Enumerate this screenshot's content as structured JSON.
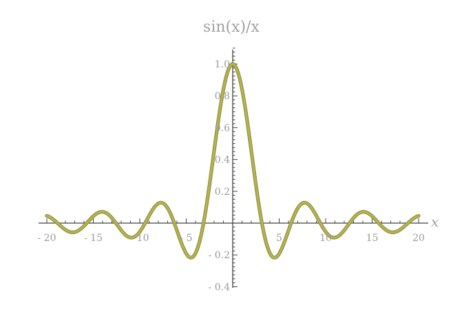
{
  "chart_data": {
    "type": "line",
    "title": "sin(x)/x",
    "xlabel": "x",
    "ylabel": "",
    "function": "sin(x)/x",
    "xlim": [
      -20,
      20
    ],
    "ylim": [
      -0.4,
      1.0
    ],
    "x_ticks": [
      -20,
      -15,
      -10,
      -5,
      5,
      10,
      15,
      20
    ],
    "x_tick_labels": [
      "- 20",
      "- 15",
      "- 10",
      "- 5",
      "5",
      "10",
      "15",
      "20"
    ],
    "y_ticks": [
      -0.4,
      -0.2,
      0.2,
      0.4,
      0.6,
      0.8,
      1.0
    ],
    "y_tick_labels": [
      "- 0.4",
      "- 0.2",
      "0.2",
      "0.4",
      "0.6",
      "0.8",
      "1.0"
    ],
    "grid": false,
    "series": [
      {
        "color": "#b5b34d",
        "x": [
          -20,
          -19,
          -18,
          -17,
          -16,
          -15,
          -14,
          -13,
          -12,
          -11,
          -10,
          -9,
          -8,
          -7,
          -6,
          -5,
          -4,
          -3,
          -2,
          -1,
          0,
          1,
          2,
          3,
          4,
          5,
          6,
          7,
          8,
          9,
          10,
          11,
          12,
          13,
          14,
          15,
          16,
          17,
          18,
          19,
          20
        ],
        "y": [
          0.046,
          0.008,
          -0.042,
          -0.056,
          -0.018,
          0.043,
          0.071,
          0.032,
          -0.045,
          -0.091,
          -0.054,
          0.046,
          0.124,
          0.094,
          -0.047,
          -0.192,
          -0.189,
          0.047,
          0.455,
          0.841,
          1.0,
          0.841,
          0.455,
          0.047,
          -0.189,
          -0.192,
          -0.047,
          0.094,
          0.124,
          0.046,
          -0.054,
          -0.091,
          -0.045,
          0.032,
          0.071,
          0.043,
          -0.018,
          -0.056,
          -0.042,
          0.008,
          0.046
        ]
      }
    ]
  }
}
